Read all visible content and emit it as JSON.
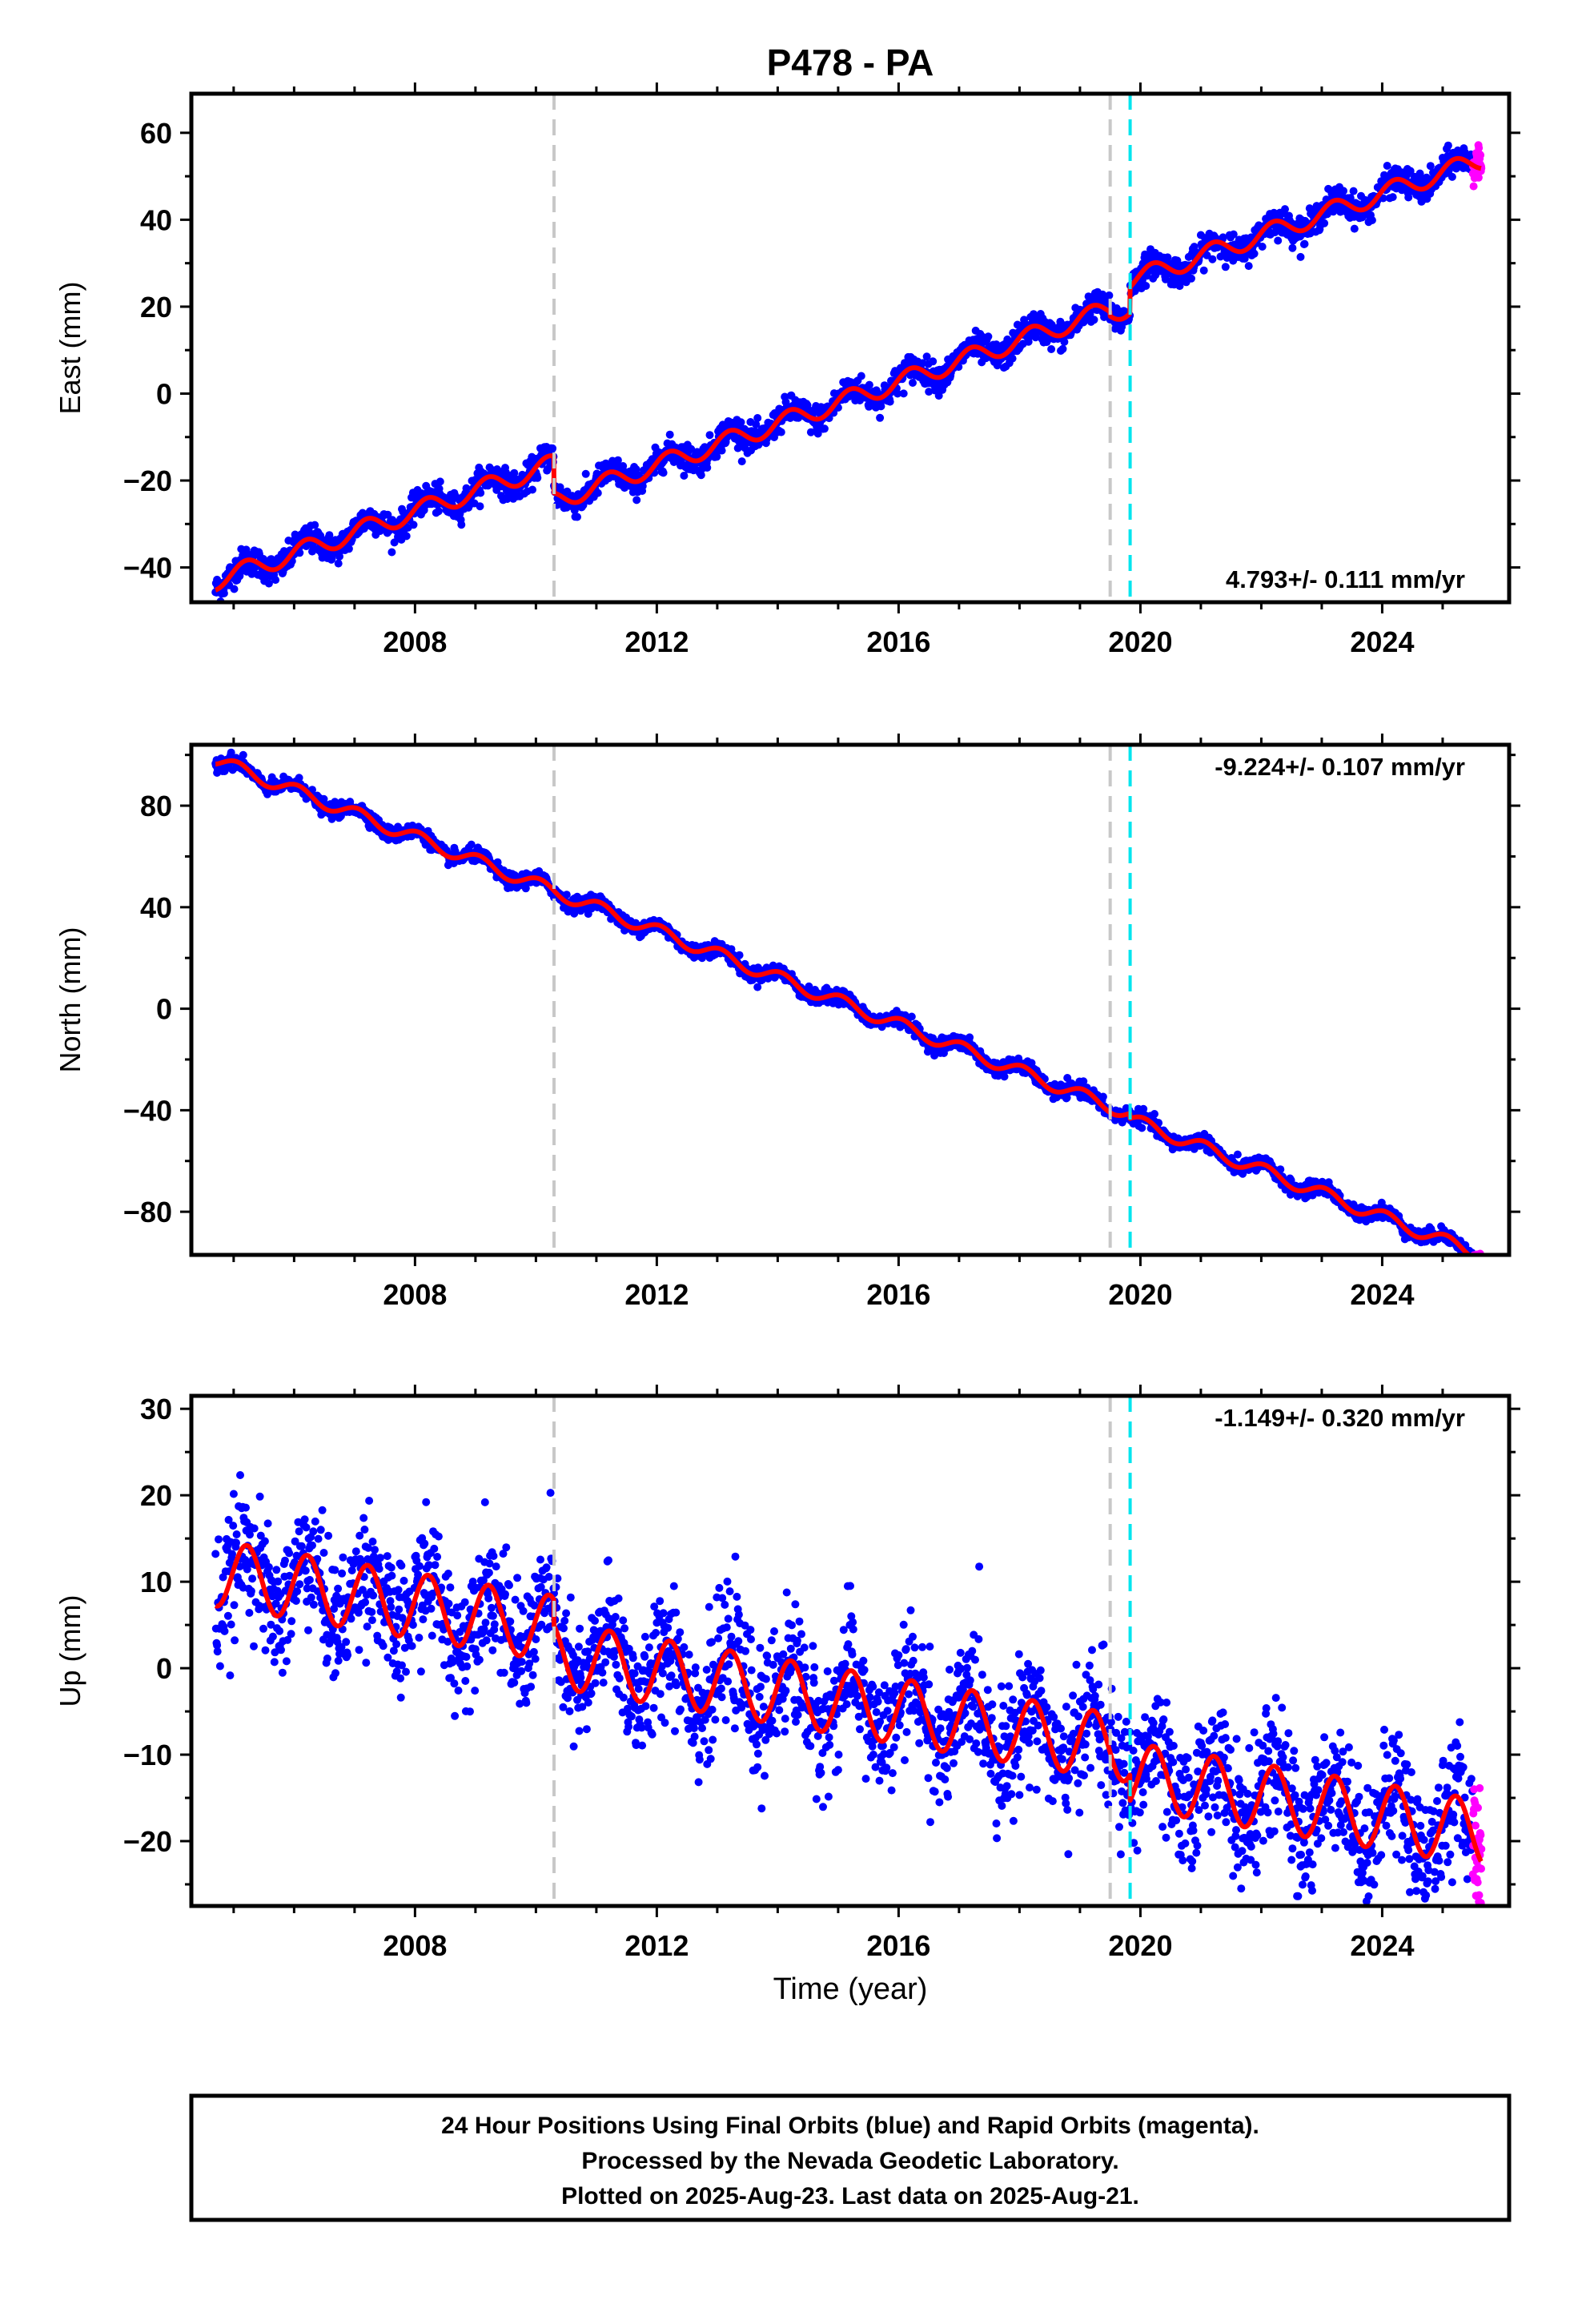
{
  "title": "P478 - PA",
  "xlabel": "Time (year)",
  "x_tick_labels": [
    "2008",
    "2012",
    "2016",
    "2020",
    "2024"
  ],
  "colors": {
    "final_orbits": "#0000ff",
    "rapid_orbits": "#ff00ff",
    "model_fit": "#ff0000",
    "equipment_change": "#c8c8c8",
    "earthquake_event": "#00e5ee"
  },
  "footer": {
    "line1": "24 Hour Positions Using Final Orbits (blue) and Rapid Orbits (magenta).",
    "line2": "Processed by the Nevada Geodetic Laboratory.",
    "line3": "Plotted on 2025-Aug-23. Last data on 2025-Aug-21."
  },
  "chart_data": [
    {
      "type": "scatter",
      "ylabel": "East (mm)",
      "rate_label": "4.793+/- 0.111 mm/yr",
      "rate_position": "bottom-right",
      "xlim": [
        2004.3,
        2026.1
      ],
      "ylim": [
        -48,
        69
      ],
      "y_ticks": [
        -40,
        -20,
        0,
        20,
        40,
        60
      ],
      "x_ticks": [
        2008,
        2012,
        2016,
        2020,
        2024
      ],
      "vertical_lines": [
        {
          "x": 2010.3,
          "kind": "equipment_change"
        },
        {
          "x": 2019.5,
          "kind": "equipment_change"
        },
        {
          "x": 2019.83,
          "kind": "earthquake_event"
        }
      ],
      "data_span": [
        2004.7,
        2025.64
      ],
      "rapid_span": [
        2025.5,
        2025.64
      ],
      "model": {
        "linear_reference_epoch": 2004.7,
        "intercept": -43,
        "rate": 4.793,
        "offsets": [
          {
            "t": 2010.3,
            "step": -8.5
          },
          {
            "t": 2019.5,
            "step": -1
          },
          {
            "t": 2019.83,
            "step": 6
          }
        ],
        "seasonal_amplitude": 2.2,
        "seasonal_phase": 0.3
      },
      "noise_scatter": 1.6,
      "series": [
        {
          "name": "Final Orbits (blue)",
          "kind": "final_orbits"
        },
        {
          "name": "Rapid Orbits (magenta)",
          "kind": "rapid_orbits"
        }
      ]
    },
    {
      "type": "scatter",
      "ylabel": "North (mm)",
      "rate_label": "-9.224+/- 0.107 mm/yr",
      "rate_position": "top-right",
      "xlim": [
        2004.3,
        2026.1
      ],
      "ylim": [
        -97,
        104
      ],
      "y_ticks": [
        -80,
        -40,
        0,
        40,
        80
      ],
      "x_ticks": [
        2008,
        2012,
        2016,
        2020,
        2024
      ],
      "vertical_lines": [
        {
          "x": 2010.3,
          "kind": "equipment_change"
        },
        {
          "x": 2019.5,
          "kind": "equipment_change"
        },
        {
          "x": 2019.83,
          "kind": "earthquake_event"
        }
      ],
      "data_span": [
        2004.7,
        2025.64
      ],
      "rapid_span": [
        2025.5,
        2025.64
      ],
      "model": {
        "linear_reference_epoch": 2004.7,
        "intercept": 98,
        "rate": -9.224,
        "offsets": [
          {
            "t": 2010.3,
            "step": 0
          },
          {
            "t": 2019.5,
            "step": 0
          },
          {
            "t": 2019.83,
            "step": -2
          }
        ],
        "seasonal_amplitude": 2.6,
        "seasonal_phase": 1.2
      },
      "noise_scatter": 1.4,
      "series": [
        {
          "name": "Final Orbits (blue)",
          "kind": "final_orbits"
        },
        {
          "name": "Rapid Orbits (magenta)",
          "kind": "rapid_orbits"
        }
      ]
    },
    {
      "type": "scatter",
      "ylabel": "Up (mm)",
      "rate_label": "-1.149+/- 0.320 mm/yr",
      "rate_position": "top-right",
      "xlim": [
        2004.3,
        2026.1
      ],
      "ylim": [
        -27.5,
        31.5
      ],
      "y_ticks": [
        -20,
        -10,
        0,
        10,
        20,
        30
      ],
      "x_ticks": [
        2008,
        2012,
        2016,
        2020,
        2024
      ],
      "vertical_lines": [
        {
          "x": 2010.3,
          "kind": "equipment_change"
        },
        {
          "x": 2019.5,
          "kind": "equipment_change"
        },
        {
          "x": 2019.83,
          "kind": "earthquake_event"
        }
      ],
      "data_span": [
        2004.7,
        2025.64
      ],
      "rapid_span": [
        2025.5,
        2025.64
      ],
      "model": {
        "linear_reference_epoch": 2004.7,
        "intercept": 11,
        "rate": -1.149,
        "offsets": [
          {
            "t": 2010.3,
            "step": -3
          },
          {
            "t": 2019.5,
            "step": 0
          },
          {
            "t": 2019.83,
            "step": -3
          }
        ],
        "seasonal_amplitude": 3.8,
        "seasonal_phase": 0.2
      },
      "noise_scatter": 3.6,
      "series": [
        {
          "name": "Final Orbits (blue)",
          "kind": "final_orbits"
        },
        {
          "name": "Rapid Orbits (magenta)",
          "kind": "rapid_orbits"
        }
      ]
    }
  ]
}
